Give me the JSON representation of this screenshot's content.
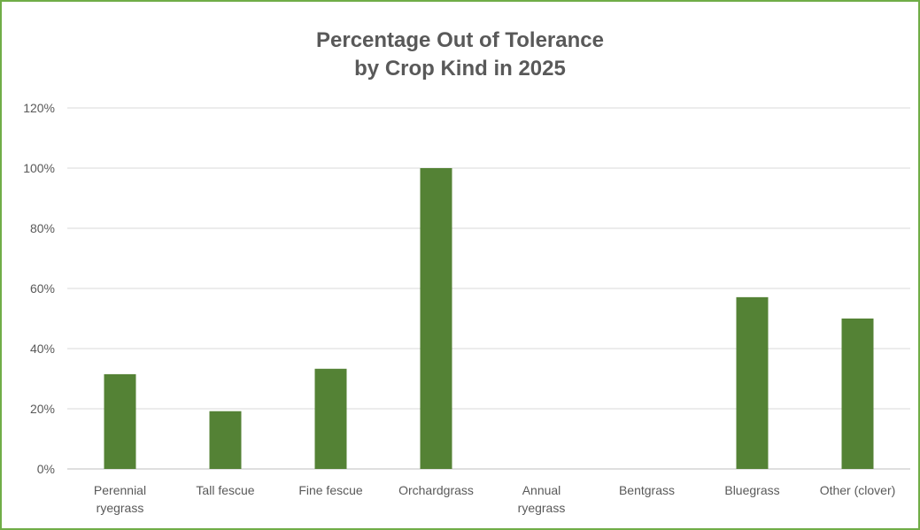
{
  "chart_data": {
    "type": "bar",
    "title_lines": [
      "Percentage Out of Tolerance",
      "by Crop Kind in 2025"
    ],
    "categories": [
      "Perennial ryegrass",
      "Tall fescue",
      "Fine fescue",
      "Orchardgrass",
      "Annual ryegrass",
      "Bentgrass",
      "Bluegrass",
      "Other (clover)"
    ],
    "category_label_lines": [
      [
        "Perennial",
        "ryegrass"
      ],
      [
        "Tall fescue"
      ],
      [
        "Fine fescue"
      ],
      [
        "Orchardgrass"
      ],
      [
        "Annual",
        "ryegrass"
      ],
      [
        "Bentgrass"
      ],
      [
        "Bluegrass"
      ],
      [
        "Other (clover)"
      ]
    ],
    "values": [
      31.5,
      19.2,
      33.3,
      100,
      0,
      0,
      57.1,
      50
    ],
    "unit": "%",
    "ylim": [
      0,
      120
    ],
    "yticks": [
      0,
      20,
      40,
      60,
      80,
      100,
      120
    ],
    "ytick_labels": [
      "0%",
      "20%",
      "40%",
      "60%",
      "80%",
      "100%",
      "120%"
    ],
    "xlabel": "",
    "ylabel": "",
    "grid": true,
    "legend": "none",
    "bar_color": "#548235",
    "grid_color": "#d9d9d9",
    "border_color": "#70ad47"
  }
}
